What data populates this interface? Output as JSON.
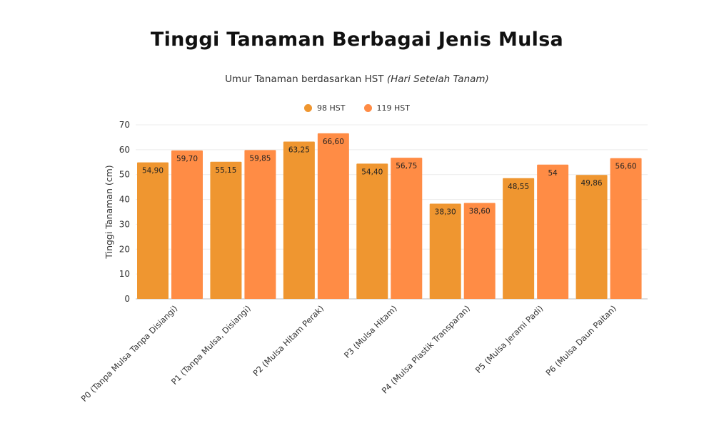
{
  "chart_data": {
    "type": "bar",
    "title": "Tinggi Tanaman Berbagai Jenis Mulsa",
    "subtitle": "Umur Tanaman berdasarkan HST",
    "subtitle_italic": "(Hari Setelah Tanam)",
    "xlabel": "",
    "ylabel": "Tinggi Tanaman (cm)",
    "ylim": [
      0,
      70
    ],
    "yticks": [
      0,
      10,
      20,
      30,
      40,
      50,
      60,
      70
    ],
    "grid": true,
    "legend_position": "top-center",
    "categories": [
      "P0 (Tanpa Mulsa Tanpa Disiangi)",
      "P1 (Tanpa Mulsa, Disiangi)",
      "P2 (Mulsa Hitam Perak)",
      "P3 (Mulsa Hitam)",
      "P4 (Mulsa Plastik Transparan)",
      "P5 (Mulsa Jerami Padi)",
      "P6 (Mulsa Daun Paitan)"
    ],
    "series": [
      {
        "name": "98 HST",
        "color": "#EF9630",
        "values": [
          54.9,
          55.15,
          63.25,
          54.4,
          38.3,
          48.55,
          49.86
        ],
        "labels": [
          "54,90",
          "55,15",
          "63,25",
          "54,40",
          "38,30",
          "48,55",
          "49,86"
        ]
      },
      {
        "name": "119 HST",
        "color": "#FF8C45",
        "values": [
          59.7,
          59.85,
          66.6,
          56.75,
          38.6,
          54,
          56.6
        ],
        "labels": [
          "59,70",
          "59,85",
          "66,60",
          "56,75",
          "38,60",
          "54",
          "56,60"
        ]
      }
    ]
  }
}
